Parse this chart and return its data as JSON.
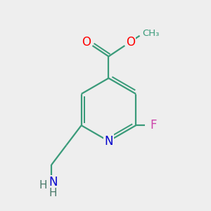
{
  "bg_color": "#eeeeee",
  "bond_color": "#3a9b7a",
  "bond_width": 1.6,
  "atom_colors": {
    "O": "#ff0000",
    "N": "#0000cc",
    "F": "#cc44aa",
    "H": "#4a7a6a",
    "C": "#3a9b7a"
  }
}
